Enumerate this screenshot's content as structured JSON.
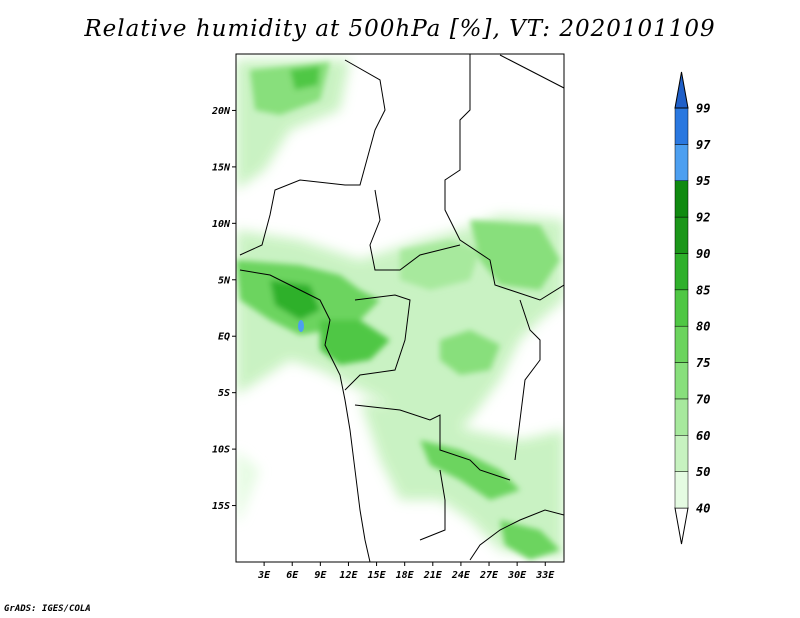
{
  "title": "Relative humidity at 500hPa [%], VT: 2020101109",
  "credit": "GrADS: IGES/COLA",
  "map": {
    "lon_range": [
      0,
      35
    ],
    "lat_range": [
      -20,
      25
    ],
    "lat_labels": [
      {
        "lat": 20,
        "label": "20N"
      },
      {
        "lat": 15,
        "label": "15N"
      },
      {
        "lat": 10,
        "label": "10N"
      },
      {
        "lat": 5,
        "label": "5N"
      },
      {
        "lat": 0,
        "label": "EQ"
      },
      {
        "lat": -5,
        "label": "5S"
      },
      {
        "lat": -10,
        "label": "10S"
      },
      {
        "lat": -15,
        "label": "15S"
      }
    ],
    "lon_labels": [
      {
        "lon": 3,
        "label": "3E"
      },
      {
        "lon": 6,
        "label": "6E"
      },
      {
        "lon": 9,
        "label": "9E"
      },
      {
        "lon": 12,
        "label": "12E"
      },
      {
        "lon": 15,
        "label": "15E"
      },
      {
        "lon": 18,
        "label": "18E"
      },
      {
        "lon": 21,
        "label": "21E"
      },
      {
        "lon": 24,
        "label": "24E"
      },
      {
        "lon": 27,
        "label": "27E"
      },
      {
        "lon": 30,
        "label": "30E"
      },
      {
        "lon": 33,
        "label": "33E"
      }
    ]
  },
  "colorbar": {
    "bins": [
      {
        "label": "40",
        "color": "#ffffff"
      },
      {
        "label": "50",
        "color": "#e5fbe2"
      },
      {
        "label": "60",
        "color": "#c7f2c0"
      },
      {
        "label": "70",
        "color": "#a7e99d"
      },
      {
        "label": "75",
        "color": "#88df7c"
      },
      {
        "label": "80",
        "color": "#6cd45e"
      },
      {
        "label": "85",
        "color": "#4fc744"
      },
      {
        "label": "90",
        "color": "#2fb02b"
      },
      {
        "label": "92",
        "color": "#1b9619"
      },
      {
        "label": "95",
        "color": "#108a10"
      },
      {
        "label": "97",
        "color": "#4d9ff0"
      },
      {
        "label": "99",
        "color": "#2a78e0"
      }
    ],
    "top_color": "#1f5fc8"
  }
}
